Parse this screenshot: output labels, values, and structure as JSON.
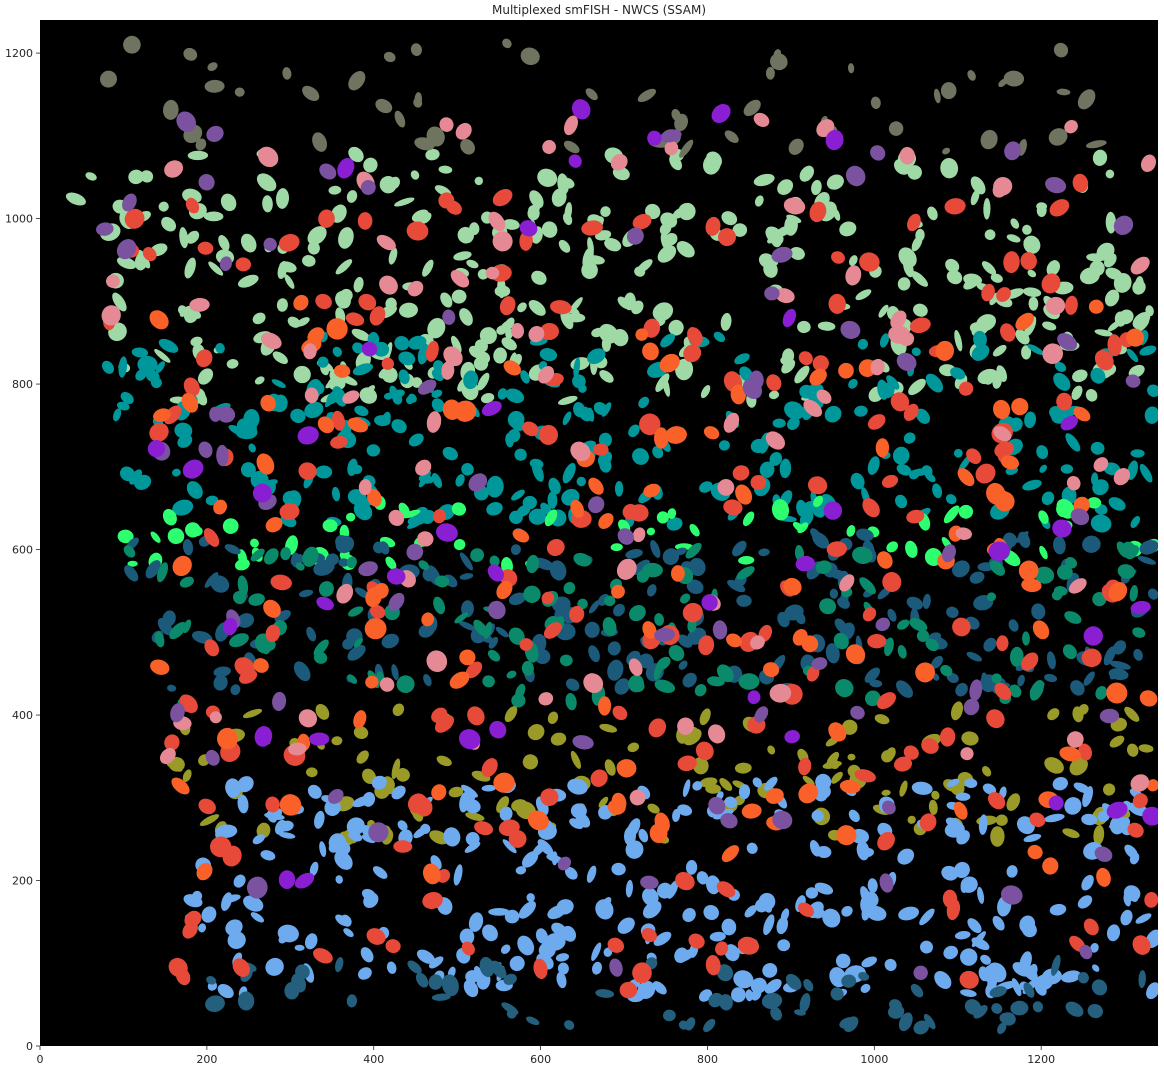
{
  "chart_data": {
    "type": "heatmap",
    "title": "Multiplexed smFISH - NWCS (SSAM)",
    "xlabel": "",
    "ylabel": "",
    "xlim": [
      0,
      1340
    ],
    "ylim": [
      0,
      1240
    ],
    "x_ticks": [
      0,
      200,
      400,
      600,
      800,
      1000,
      1200
    ],
    "y_ticks": [
      0,
      200,
      400,
      600,
      800,
      1000,
      1200
    ],
    "grid": false,
    "background_color": "#000000",
    "layers": [
      {
        "color": "#9fd9a6",
        "y_range": [
          780,
          1080
        ],
        "density": 0.9
      },
      {
        "color": "#00979b",
        "y_range": [
          630,
          860
        ],
        "density": 0.9
      },
      {
        "color": "#2eff6e",
        "y_range": [
          580,
          660
        ],
        "density": 0.6
      },
      {
        "color": "#1b5a7a",
        "y_range": [
          430,
          620
        ],
        "density": 0.8
      },
      {
        "color": "#0a8a6a",
        "y_range": [
          410,
          600
        ],
        "density": 0.5
      },
      {
        "color": "#9a9a28",
        "y_range": [
          250,
          410
        ],
        "density": 0.6
      },
      {
        "color": "#6eaaee",
        "y_range": [
          60,
          320
        ],
        "density": 0.95
      },
      {
        "color": "#245f7e",
        "y_range": [
          20,
          100
        ],
        "density": 0.6
      },
      {
        "color": "#6f7460",
        "y_range": [
          1080,
          1220
        ],
        "density": 0.3
      },
      {
        "color": "#e84a3a",
        "y_range": [
          60,
          1050
        ],
        "density": 0.15
      },
      {
        "color": "#fa6128",
        "y_range": [
          200,
          900
        ],
        "density": 0.12
      },
      {
        "color": "#e58a94",
        "y_range": [
          300,
          1120
        ],
        "density": 0.08
      },
      {
        "color": "#7a52a0",
        "y_range": [
          80,
          1140
        ],
        "density": 0.05
      },
      {
        "color": "#8a1ed2",
        "y_range": [
          180,
          1140
        ],
        "density": 0.03
      }
    ]
  }
}
